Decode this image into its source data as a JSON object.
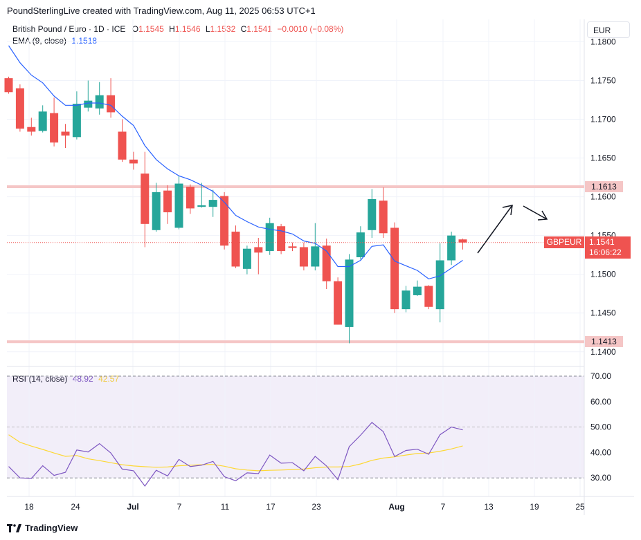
{
  "header": {
    "title": "PoundSterlingLive created with TradingView.com, Aug 11, 2025 06:53 UTC+1"
  },
  "legend": {
    "symbol": "British Pound / Euro · 1D · ICE",
    "o_label": "O",
    "o": "1.1545",
    "h_label": "H",
    "h": "1.1546",
    "l_label": "L",
    "l": "1.1532",
    "c_label": "C",
    "c": "1.1541",
    "change": "−0.0010 (−0.08%)",
    "ema_label": "EMA (9, close)",
    "ema_value": "1.1518",
    "rsi_label": "RSI (14, close)",
    "rsi_value": "48.92",
    "rsi_ma_value": "42.57"
  },
  "currency_button": "EUR",
  "price_tags": {
    "resistance": "1.1613",
    "support": "1.1413",
    "symbol": "GBPEUR",
    "last": "1.1541",
    "countdown": "16:06:22"
  },
  "footer": {
    "brand": "TradingView"
  },
  "colors": {
    "up": "#26a69a",
    "down": "#ef5350",
    "ema": "#2962ff",
    "rsi": "#7e57c2",
    "rsi_ma": "#fdd835",
    "level": "#f5c6c6"
  },
  "chart_data": [
    {
      "type": "candlestick",
      "title": "British Pound / Euro · 1D · ICE",
      "y_ticks": [
        "1.1400",
        "1.1450",
        "1.1500",
        "1.1550",
        "1.1600",
        "1.1650",
        "1.1700",
        "1.1750",
        "1.1800"
      ],
      "ylim": [
        1.139,
        1.182
      ],
      "x_ticks": [
        "18",
        "24",
        "Jul",
        "7",
        "11",
        "17",
        "23",
        "Aug",
        "7",
        "13",
        "19",
        "25"
      ],
      "horizontal_levels": [
        1.1613,
        1.1413
      ],
      "candles": [
        {
          "o": 1.1753,
          "h": 1.1755,
          "l": 1.1733,
          "c": 1.1735
        },
        {
          "o": 1.174,
          "h": 1.1745,
          "l": 1.1684,
          "c": 1.1688
        },
        {
          "o": 1.169,
          "h": 1.1702,
          "l": 1.1679,
          "c": 1.1684
        },
        {
          "o": 1.1685,
          "h": 1.1718,
          "l": 1.1683,
          "c": 1.171
        },
        {
          "o": 1.1708,
          "h": 1.1728,
          "l": 1.1665,
          "c": 1.167
        },
        {
          "o": 1.1684,
          "h": 1.1694,
          "l": 1.1663,
          "c": 1.1679
        },
        {
          "o": 1.1677,
          "h": 1.1736,
          "l": 1.1674,
          "c": 1.172
        },
        {
          "o": 1.1715,
          "h": 1.175,
          "l": 1.171,
          "c": 1.1724
        },
        {
          "o": 1.1714,
          "h": 1.1748,
          "l": 1.1706,
          "c": 1.1731
        },
        {
          "o": 1.1731,
          "h": 1.1753,
          "l": 1.1702,
          "c": 1.1709
        },
        {
          "o": 1.1684,
          "h": 1.17,
          "l": 1.1645,
          "c": 1.1648
        },
        {
          "o": 1.1648,
          "h": 1.1658,
          "l": 1.1635,
          "c": 1.1643
        },
        {
          "o": 1.163,
          "h": 1.1658,
          "l": 1.1535,
          "c": 1.1565
        },
        {
          "o": 1.1557,
          "h": 1.1618,
          "l": 1.1555,
          "c": 1.1606
        },
        {
          "o": 1.1608,
          "h": 1.1615,
          "l": 1.1565,
          "c": 1.158
        },
        {
          "o": 1.156,
          "h": 1.1627,
          "l": 1.1558,
          "c": 1.1617
        },
        {
          "o": 1.1613,
          "h": 1.1616,
          "l": 1.1578,
          "c": 1.1585
        },
        {
          "o": 1.1587,
          "h": 1.1618,
          "l": 1.1586,
          "c": 1.1589
        },
        {
          "o": 1.1587,
          "h": 1.1609,
          "l": 1.1574,
          "c": 1.1596
        },
        {
          "o": 1.1601,
          "h": 1.1606,
          "l": 1.1532,
          "c": 1.1537
        },
        {
          "o": 1.1555,
          "h": 1.1563,
          "l": 1.1508,
          "c": 1.151
        },
        {
          "o": 1.1507,
          "h": 1.1537,
          "l": 1.15,
          "c": 1.1533
        },
        {
          "o": 1.1535,
          "h": 1.1547,
          "l": 1.15,
          "c": 1.1528
        },
        {
          "o": 1.153,
          "h": 1.1573,
          "l": 1.1525,
          "c": 1.1566
        },
        {
          "o": 1.1562,
          "h": 1.1565,
          "l": 1.1526,
          "c": 1.153
        },
        {
          "o": 1.1536,
          "h": 1.1541,
          "l": 1.153,
          "c": 1.1534
        },
        {
          "o": 1.1535,
          "h": 1.1541,
          "l": 1.1505,
          "c": 1.151
        },
        {
          "o": 1.151,
          "h": 1.1566,
          "l": 1.1505,
          "c": 1.1536
        },
        {
          "o": 1.1537,
          "h": 1.1546,
          "l": 1.1481,
          "c": 1.1491
        },
        {
          "o": 1.1491,
          "h": 1.1496,
          "l": 1.1435,
          "c": 1.1435
        },
        {
          "o": 1.1432,
          "h": 1.1526,
          "l": 1.1411,
          "c": 1.1519
        },
        {
          "o": 1.1522,
          "h": 1.1562,
          "l": 1.1519,
          "c": 1.1554
        },
        {
          "o": 1.1557,
          "h": 1.161,
          "l": 1.1547,
          "c": 1.1597
        },
        {
          "o": 1.1595,
          "h": 1.1612,
          "l": 1.1547,
          "c": 1.1553
        },
        {
          "o": 1.156,
          "h": 1.1567,
          "l": 1.145,
          "c": 1.1455
        },
        {
          "o": 1.1455,
          "h": 1.1485,
          "l": 1.1451,
          "c": 1.1479
        },
        {
          "o": 1.1473,
          "h": 1.1492,
          "l": 1.1472,
          "c": 1.1484
        },
        {
          "o": 1.1485,
          "h": 1.1486,
          "l": 1.1455,
          "c": 1.1458
        },
        {
          "o": 1.1455,
          "h": 1.154,
          "l": 1.1438,
          "c": 1.1518
        },
        {
          "o": 1.1518,
          "h": 1.1555,
          "l": 1.1512,
          "c": 1.155
        },
        {
          "o": 1.1545,
          "h": 1.1546,
          "l": 1.1532,
          "c": 1.1541
        }
      ],
      "ema": [
        1.1795,
        1.1773,
        1.1757,
        1.1747,
        1.173,
        1.1718,
        1.1718,
        1.1721,
        1.1721,
        1.1718,
        1.1704,
        1.1692,
        1.1666,
        1.1648,
        1.1636,
        1.1627,
        1.1622,
        1.1615,
        1.1607,
        1.1593,
        1.1576,
        1.1568,
        1.1561,
        1.1558,
        1.1556,
        1.1552,
        1.1543,
        1.154,
        1.153,
        1.151,
        1.151,
        1.1518,
        1.1536,
        1.1538,
        1.1517,
        1.1511,
        1.1505,
        1.1494,
        1.1498,
        1.1508,
        1.1518
      ]
    },
    {
      "type": "line",
      "title": "RSI (14, close)",
      "y_ticks": [
        "30.00",
        "40.00",
        "50.00",
        "60.00",
        "70.00"
      ],
      "ylim": [
        23.0,
        73.0
      ],
      "bands": [
        30,
        50,
        70
      ],
      "series": [
        {
          "name": "RSI",
          "values": [
            34.5,
            30.0,
            29.8,
            34.8,
            31.0,
            32.2,
            41.0,
            40.2,
            43.5,
            39.8,
            33.5,
            32.8,
            26.8,
            33.0,
            30.8,
            37.3,
            34.5,
            35.0,
            36.5,
            30.5,
            28.9,
            32.0,
            31.7,
            39.0,
            35.8,
            36.0,
            32.8,
            38.5,
            34.7,
            29.3,
            42.3,
            46.8,
            51.8,
            48.2,
            38.4,
            40.8,
            41.3,
            39.3,
            47.0,
            50.0,
            48.9
          ]
        },
        {
          "name": "RSI MA",
          "values": [
            47.0,
            44.0,
            42.5,
            41.2,
            39.8,
            38.5,
            38.8,
            37.5,
            36.8,
            36.0,
            35.2,
            34.7,
            34.4,
            34.2,
            34.3,
            34.8,
            35.0,
            35.2,
            35.3,
            34.6,
            33.6,
            33.1,
            32.8,
            33.0,
            33.1,
            33.3,
            33.5,
            34.0,
            34.3,
            34.3,
            34.5,
            35.5,
            36.9,
            37.8,
            38.3,
            39.0,
            39.6,
            39.8,
            40.5,
            41.4,
            42.6
          ]
        }
      ]
    }
  ]
}
